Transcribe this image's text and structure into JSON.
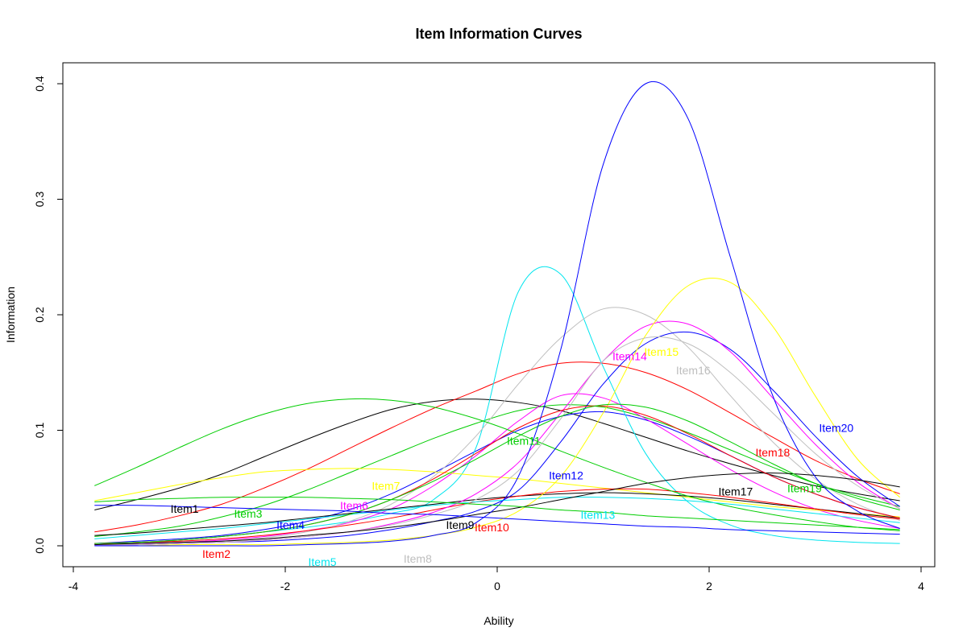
{
  "chart_data": {
    "type": "line",
    "title": "Item Information Curves",
    "xlabel": "Ability",
    "ylabel": "Information",
    "xlim": [
      -4,
      4
    ],
    "ylim": [
      0,
      0.4
    ],
    "x_ticks": [
      -4,
      -2,
      0,
      2,
      4
    ],
    "x_tick_labels": [
      "-4",
      "-2",
      "0",
      "2",
      "4"
    ],
    "y_ticks": [
      0.0,
      0.1,
      0.2,
      0.3,
      0.4
    ],
    "y_tick_labels": [
      "0.0",
      "0.1",
      "0.2",
      "0.3",
      "0.4"
    ],
    "grid": false,
    "legend": "none",
    "x": [
      -3.8,
      -3.4,
      -3.0,
      -2.6,
      -2.2,
      -1.8,
      -1.4,
      -1.0,
      -0.6,
      -0.2,
      0.2,
      0.6,
      1.0,
      1.4,
      1.8,
      2.2,
      2.6,
      3.0,
      3.4,
      3.8
    ],
    "series": [
      {
        "name": "Item1",
        "color": "#000000",
        "label_at": [
          -2.95,
          0.032
        ],
        "values": [
          0.031,
          0.04,
          0.05,
          0.062,
          0.077,
          0.092,
          0.106,
          0.118,
          0.125,
          0.127,
          0.124,
          0.117,
          0.106,
          0.094,
          0.082,
          0.071,
          0.061,
          0.052,
          0.045,
          0.039
        ]
      },
      {
        "name": "Item2",
        "color": "#ff0000",
        "label_at": [
          -2.65,
          -0.007
        ],
        "values": [
          0.012,
          0.018,
          0.026,
          0.036,
          0.05,
          0.066,
          0.084,
          0.102,
          0.119,
          0.134,
          0.149,
          0.158,
          0.158,
          0.15,
          0.135,
          0.115,
          0.094,
          0.074,
          0.058,
          0.045
        ]
      },
      {
        "name": "Item3",
        "color": "#00cd00",
        "label_at": [
          -2.35,
          0.028
        ],
        "values": [
          0.008,
          0.012,
          0.017,
          0.025,
          0.035,
          0.048,
          0.063,
          0.078,
          0.093,
          0.106,
          0.117,
          0.122,
          0.12,
          0.111,
          0.098,
          0.083,
          0.068,
          0.054,
          0.043,
          0.034
        ]
      },
      {
        "name": "Item4",
        "color": "#0000ff",
        "label_at": [
          -1.95,
          0.018
        ],
        "values": [
          0.002,
          0.004,
          0.006,
          0.009,
          0.014,
          0.021,
          0.031,
          0.045,
          0.063,
          0.082,
          0.1,
          0.112,
          0.116,
          0.109,
          0.095,
          0.078,
          0.06,
          0.045,
          0.033,
          0.024
        ]
      },
      {
        "name": "Item5",
        "color": "#00e5ee",
        "label_at": [
          -1.65,
          -0.014
        ],
        "values": [
          0.002,
          0.003,
          0.005,
          0.008,
          0.012,
          0.016,
          0.021,
          0.028,
          0.04,
          0.085,
          0.22,
          0.235,
          0.155,
          0.08,
          0.038,
          0.018,
          0.009,
          0.005,
          0.003,
          0.002
        ]
      },
      {
        "name": "Item6",
        "color": "#ff00ff",
        "label_at": [
          -1.35,
          0.035
        ],
        "values": [
          0.001,
          0.002,
          0.003,
          0.005,
          0.008,
          0.013,
          0.02,
          0.032,
          0.052,
          0.078,
          0.108,
          0.13,
          0.128,
          0.11,
          0.088,
          0.066,
          0.047,
          0.032,
          0.022,
          0.015
        ]
      },
      {
        "name": "Item7",
        "color": "#ffff00",
        "label_at": [
          -1.05,
          0.052
        ],
        "values": [
          0.039,
          0.046,
          0.053,
          0.059,
          0.064,
          0.066,
          0.067,
          0.066,
          0.064,
          0.061,
          0.058,
          0.054,
          0.05,
          0.046,
          0.042,
          0.038,
          0.034,
          0.031,
          0.028,
          0.025
        ]
      },
      {
        "name": "Item8",
        "color": "#bebebe",
        "label_at": [
          -0.75,
          -0.011
        ],
        "values": [
          0.001,
          0.001,
          0.002,
          0.004,
          0.007,
          0.012,
          0.021,
          0.036,
          0.06,
          0.095,
          0.14,
          0.18,
          0.205,
          0.2,
          0.172,
          0.13,
          0.09,
          0.058,
          0.036,
          0.022
        ]
      },
      {
        "name": "Item9",
        "color": "#000000",
        "label_at": [
          -0.35,
          0.018
        ],
        "values": [
          0.009,
          0.011,
          0.014,
          0.017,
          0.02,
          0.024,
          0.028,
          0.032,
          0.036,
          0.04,
          0.043,
          0.045,
          0.046,
          0.045,
          0.043,
          0.04,
          0.036,
          0.032,
          0.028,
          0.024
        ]
      },
      {
        "name": "Item10",
        "color": "#ff0000",
        "label_at": [
          -0.05,
          0.016
        ],
        "values": [
          0.002,
          0.003,
          0.004,
          0.006,
          0.009,
          0.013,
          0.018,
          0.024,
          0.031,
          0.038,
          0.043,
          0.047,
          0.049,
          0.049,
          0.046,
          0.042,
          0.037,
          0.032,
          0.027,
          0.023
        ]
      },
      {
        "name": "Item11",
        "color": "#00cd00",
        "label_at": [
          0.25,
          0.091
        ],
        "values": [
          0.052,
          0.068,
          0.085,
          0.101,
          0.114,
          0.123,
          0.127,
          0.126,
          0.12,
          0.11,
          0.097,
          0.082,
          0.068,
          0.055,
          0.043,
          0.034,
          0.027,
          0.021,
          0.016,
          0.013
        ]
      },
      {
        "name": "Item12",
        "color": "#0000ff",
        "label_at": [
          0.65,
          0.061
        ],
        "values": [
          0.001,
          0.001,
          0.002,
          0.003,
          0.004,
          0.006,
          0.009,
          0.014,
          0.021,
          0.03,
          0.048,
          0.09,
          0.14,
          0.175,
          0.185,
          0.17,
          0.135,
          0.095,
          0.06,
          0.034
        ]
      },
      {
        "name": "Item13",
        "color": "#00e5ee",
        "label_at": [
          0.95,
          0.027
        ],
        "values": [
          0.006,
          0.009,
          0.012,
          0.015,
          0.019,
          0.023,
          0.027,
          0.031,
          0.035,
          0.038,
          0.04,
          0.042,
          0.042,
          0.041,
          0.039,
          0.036,
          0.032,
          0.028,
          0.024,
          0.02
        ]
      },
      {
        "name": "Item14",
        "color": "#ff00ff",
        "label_at": [
          1.25,
          0.164
        ],
        "values": [
          0.001,
          0.001,
          0.002,
          0.003,
          0.005,
          0.008,
          0.012,
          0.019,
          0.029,
          0.045,
          0.072,
          0.115,
          0.16,
          0.19,
          0.192,
          0.168,
          0.128,
          0.088,
          0.055,
          0.032
        ]
      },
      {
        "name": "Item15",
        "color": "#ffff00",
        "label_at": [
          1.55,
          0.168
        ],
        "values": [
          0.0,
          0.0,
          0.001,
          0.001,
          0.001,
          0.002,
          0.003,
          0.005,
          0.009,
          0.016,
          0.03,
          0.06,
          0.115,
          0.182,
          0.225,
          0.228,
          0.19,
          0.13,
          0.075,
          0.042
        ]
      },
      {
        "name": "Item16",
        "color": "#bebebe",
        "label_at": [
          1.85,
          0.152
        ],
        "values": [
          0.001,
          0.001,
          0.002,
          0.003,
          0.005,
          0.008,
          0.012,
          0.018,
          0.027,
          0.04,
          0.065,
          0.11,
          0.16,
          0.18,
          0.175,
          0.15,
          0.115,
          0.08,
          0.052,
          0.032
        ]
      },
      {
        "name": "Item17",
        "color": "#000000",
        "label_at": [
          2.25,
          0.047
        ],
        "values": [
          0.001,
          0.002,
          0.003,
          0.004,
          0.006,
          0.009,
          0.012,
          0.016,
          0.021,
          0.027,
          0.033,
          0.04,
          0.047,
          0.054,
          0.059,
          0.062,
          0.063,
          0.061,
          0.057,
          0.051
        ]
      },
      {
        "name": "Item18",
        "color": "#ff0000",
        "label_at": [
          2.6,
          0.081
        ],
        "values": [
          0.002,
          0.003,
          0.005,
          0.008,
          0.012,
          0.018,
          0.027,
          0.04,
          0.058,
          0.08,
          0.102,
          0.117,
          0.121,
          0.113,
          0.097,
          0.078,
          0.06,
          0.045,
          0.033,
          0.024
        ]
      },
      {
        "name": "Item19",
        "color": "#00cd00",
        "label_at": [
          2.9,
          0.05
        ],
        "values": [
          0.002,
          0.003,
          0.005,
          0.008,
          0.012,
          0.018,
          0.027,
          0.04,
          0.056,
          0.075,
          0.095,
          0.112,
          0.122,
          0.12,
          0.108,
          0.09,
          0.071,
          0.054,
          0.041,
          0.031
        ]
      },
      {
        "name": "Item20",
        "color": "#0000ff",
        "label_at": [
          3.2,
          0.102
        ],
        "values": [
          0.0,
          0.0,
          0.0,
          0.0,
          0.0,
          0.001,
          0.002,
          0.004,
          0.009,
          0.02,
          0.06,
          0.17,
          0.33,
          0.4,
          0.37,
          0.25,
          0.13,
          0.06,
          0.03,
          0.015
        ]
      },
      {
        "name": "",
        "color": "#0000ff",
        "values": [
          0.035,
          0.035,
          0.034,
          0.033,
          0.032,
          0.031,
          0.03,
          0.028,
          0.027,
          0.025,
          0.023,
          0.021,
          0.019,
          0.017,
          0.016,
          0.014,
          0.013,
          0.012,
          0.011,
          0.01
        ]
      },
      {
        "name": "",
        "color": "#00cd00",
        "values": [
          0.038,
          0.04,
          0.041,
          0.042,
          0.042,
          0.042,
          0.041,
          0.04,
          0.038,
          0.036,
          0.034,
          0.031,
          0.029,
          0.026,
          0.024,
          0.022,
          0.02,
          0.018,
          0.016,
          0.014
        ]
      }
    ]
  }
}
